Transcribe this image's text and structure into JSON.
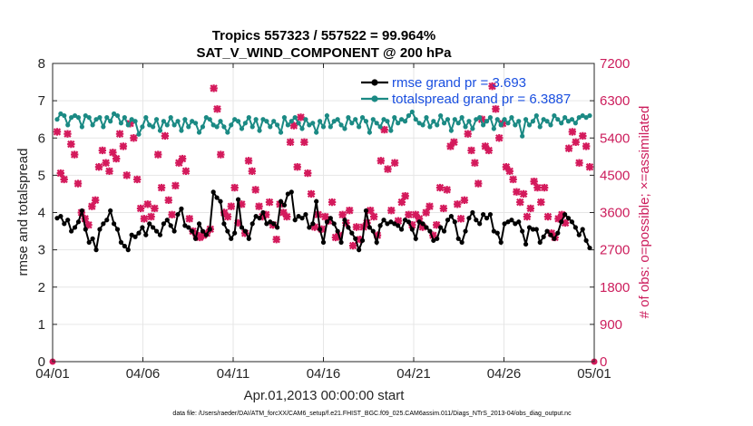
{
  "chart_data": {
    "type": "line",
    "title_line1": "Tropics 557323 / 557522 = 99.964%",
    "title_line2": "SAT_V_WIND_COMPONENT @ 200 hPa",
    "xlabel": "Apr.01,2013 00:00:00 start",
    "ylabel_left": "rmse and totalspread",
    "ylabel_right": "# of obs: o=possible; ×=assimilated",
    "footnote": "data file: /Users/raeder/DAI/ATM_forcXX/CAM6_setup/f.e21.FHIST_BGC.f09_025.CAM6assim.011/Diags_NTrS_2013-04/obs_diag_output.nc",
    "x_range_days": [
      0,
      30
    ],
    "x_ticks": [
      0,
      5,
      10,
      15,
      20,
      25,
      30
    ],
    "x_tick_labels": [
      "04/01",
      "04/06",
      "04/11",
      "04/16",
      "04/21",
      "04/26",
      "05/01"
    ],
    "ylim_left": [
      0,
      8
    ],
    "yticks_left": [
      "0",
      "1",
      "2",
      "3",
      "4",
      "5",
      "6",
      "7",
      "8"
    ],
    "ylim_right": [
      0,
      7200
    ],
    "yticks_right": [
      "0",
      "900",
      "1800",
      "2700",
      "3600",
      "4500",
      "5400",
      "6300",
      "7200"
    ],
    "grid": true,
    "legend_position": "top-right",
    "colors": {
      "rmse": "#000000",
      "spread": "#1b8a84",
      "obs": "#d41a5c",
      "right_axis": "#cc1d5c",
      "legend_text": "#1a4fe0",
      "grid": "#e6e6e6"
    },
    "series": [
      {
        "name": "rmse grand pr = 3.693",
        "axis": "left",
        "values": [
          3.85,
          3.9,
          3.7,
          3.8,
          3.5,
          3.6,
          3.75,
          4.05,
          3.55,
          3.2,
          3.3,
          3.0,
          3.55,
          3.7,
          3.8,
          4.05,
          3.7,
          3.55,
          3.2,
          3.1,
          3.0,
          3.4,
          3.35,
          3.45,
          3.6,
          3.4,
          3.7,
          3.6,
          3.5,
          3.4,
          3.7,
          3.8,
          3.65,
          3.5,
          3.95,
          4.1,
          3.65,
          3.6,
          3.5,
          3.3,
          3.7,
          3.5,
          3.4,
          3.55,
          4.55,
          4.4,
          4.3,
          3.7,
          3.5,
          3.3,
          3.45,
          4.35,
          3.6,
          3.5,
          3.3,
          3.7,
          3.9,
          3.85,
          4.0,
          3.7,
          3.75,
          3.7,
          3.6,
          4.3,
          4.2,
          4.5,
          4.55,
          3.8,
          3.9,
          3.85,
          3.95,
          3.6,
          3.7,
          4.3,
          3.55,
          3.2,
          3.75,
          3.85,
          3.7,
          3.5,
          3.2,
          3.8,
          3.6,
          3.45,
          3.3,
          3.0,
          3.25,
          4.05,
          3.6,
          3.5,
          3.2,
          3.65,
          3.8,
          3.7,
          3.75,
          3.7,
          3.65,
          3.55,
          3.8,
          3.75,
          3.55,
          3.3,
          3.75,
          3.7,
          3.6,
          3.5,
          3.25,
          3.3,
          3.6,
          3.5,
          3.8,
          3.9,
          3.75,
          3.3,
          3.2,
          3.5,
          3.85,
          4.0,
          3.8,
          3.7,
          3.95,
          3.85,
          3.95,
          3.5,
          3.45,
          3.2,
          3.7,
          3.75,
          3.8,
          3.7,
          3.75,
          3.5,
          3.15,
          3.6,
          3.55,
          3.55,
          3.2,
          3.35,
          3.5,
          3.4,
          3.3,
          3.45,
          3.75,
          3.95,
          3.85,
          3.75,
          3.6,
          3.4,
          3.55,
          3.25,
          3.05
        ]
      },
      {
        "name": "totalspread grand pr = 6.3887",
        "axis": "left",
        "values": [
          6.5,
          6.65,
          6.6,
          6.35,
          6.55,
          6.6,
          6.55,
          6.3,
          6.6,
          6.55,
          6.35,
          6.5,
          6.55,
          6.3,
          6.55,
          6.45,
          6.65,
          6.6,
          6.4,
          6.55,
          6.35,
          6.5,
          6.45,
          6.1,
          6.3,
          6.55,
          6.35,
          6.3,
          6.5,
          6.2,
          6.45,
          6.35,
          6.55,
          6.35,
          6.45,
          6.2,
          6.5,
          6.3,
          6.45,
          6.4,
          6.15,
          6.3,
          6.55,
          6.5,
          6.35,
          6.3,
          6.45,
          6.3,
          6.15,
          6.35,
          6.5,
          6.45,
          6.25,
          6.4,
          6.55,
          6.3,
          6.5,
          6.2,
          6.5,
          6.45,
          6.3,
          6.45,
          6.35,
          6.15,
          6.55,
          6.35,
          6.45,
          6.55,
          6.4,
          6.25,
          6.5,
          6.35,
          6.4,
          6.15,
          6.45,
          6.3,
          6.6,
          6.3,
          6.45,
          6.5,
          6.35,
          6.25,
          6.55,
          6.4,
          6.5,
          6.3,
          6.55,
          6.45,
          6.15,
          6.5,
          6.4,
          6.3,
          6.5,
          6.45,
          6.2,
          6.55,
          6.4,
          6.5,
          6.45,
          6.6,
          6.7,
          6.5,
          6.4,
          6.35,
          6.55,
          6.3,
          6.45,
          6.35,
          6.6,
          6.4,
          6.5,
          6.2,
          6.5,
          6.4,
          6.55,
          6.3,
          6.45,
          6.25,
          6.5,
          6.55,
          6.35,
          6.45,
          6.55,
          6.25,
          6.5,
          6.35,
          6.5,
          6.4,
          6.55,
          6.35,
          6.45,
          6.05,
          6.5,
          6.35,
          6.45,
          6.6,
          6.3,
          6.5,
          6.45,
          6.35,
          6.6,
          6.5,
          6.4,
          6.55,
          6.45,
          6.5,
          6.4,
          6.55,
          6.6,
          6.55,
          6.6
        ]
      },
      {
        "name": "obs assimilated",
        "axis": "right",
        "values": [
          5550,
          4550,
          4400,
          5500,
          5250,
          5000,
          4300,
          3600,
          3450,
          3300,
          3750,
          3900,
          4700,
          5100,
          4800,
          4600,
          5050,
          4900,
          5500,
          5200,
          4500,
          5750,
          5400,
          4400,
          3700,
          3450,
          3800,
          3500,
          3700,
          5000,
          4200,
          5450,
          3900,
          3550,
          4250,
          4800,
          4900,
          4600,
          3450,
          3150,
          3050,
          3000,
          3050,
          3100,
          3200,
          6600,
          6100,
          5000,
          3600,
          3500,
          3750,
          4200,
          3350,
          3800,
          3100,
          4850,
          4600,
          4150,
          3750,
          3500,
          3550,
          3850,
          3300,
          2950,
          3800,
          3600,
          3500,
          5300,
          5700,
          4700,
          5900,
          5300,
          4550,
          4050,
          3250,
          3550,
          3200,
          3500,
          3400,
          3850,
          3000,
          3050,
          3550,
          3350,
          3650,
          2800,
          3250,
          2950,
          3250,
          3350,
          3650,
          3500,
          3050,
          4850,
          5600,
          4650,
          3650,
          4800,
          3400,
          3850,
          4000,
          3550,
          3300,
          3550,
          3450,
          3250,
          3600,
          3750,
          3050,
          3300,
          4200,
          3700,
          4150,
          5200,
          5300,
          3800,
          3450,
          3900,
          5500,
          5100,
          4800,
          4300,
          5850,
          5200,
          5100,
          6650,
          6100,
          5400,
          5750,
          4700,
          4600,
          4400,
          4100,
          3850,
          4050,
          3500,
          3700,
          4350,
          4200,
          3850,
          4200,
          3500,
          3100,
          3000,
          3450,
          3550,
          3350,
          5150,
          5550,
          5300,
          4800,
          5450,
          5200,
          4700
        ]
      }
    ]
  }
}
